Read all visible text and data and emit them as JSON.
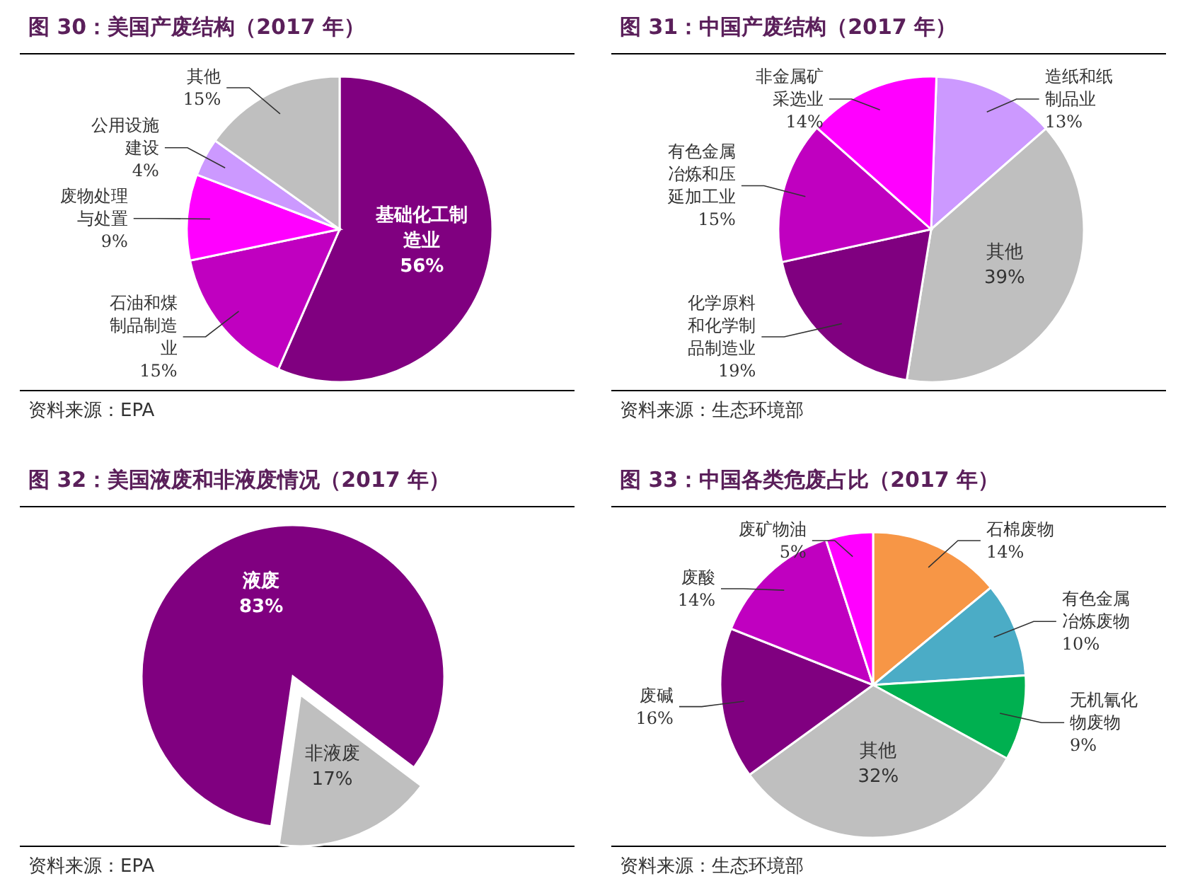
{
  "chart_data": [
    {
      "type": "pie",
      "title": "图 30：美国产废结构（2017 年）",
      "categories": [
        "基础化工制造业",
        "石油和煤制品制造业",
        "废物处理与处置",
        "公用设施建设",
        "其他"
      ],
      "values": [
        56,
        15,
        9,
        4,
        15
      ],
      "value_labels": [
        "56%",
        "15%",
        "9%",
        "4%",
        "15%"
      ],
      "colors": [
        "#800080",
        "#c000c0",
        "#ff00ff",
        "#cc99ff",
        "#bfbfbf"
      ],
      "annotations": [
        "资料来源：EPA"
      ]
    },
    {
      "type": "pie",
      "title": "图 31：中国产废结构（2017 年）",
      "categories": [
        "造纸和纸制品业",
        "其他",
        "化学原料和化学制品制造业",
        "有色金属冶炼和压延加工业",
        "非金属矿采选业"
      ],
      "values": [
        13,
        39,
        19,
        15,
        14
      ],
      "value_labels": [
        "13%",
        "39%",
        "19%",
        "15%",
        "14%"
      ],
      "colors": [
        "#cc99ff",
        "#bfbfbf",
        "#800080",
        "#c000c0",
        "#ff00ff"
      ],
      "annotations": [
        "资料来源：生态环境部"
      ]
    },
    {
      "type": "pie",
      "title": "图 32：美国液废和非液废情况（2017 年）",
      "categories": [
        "非液废",
        "液废"
      ],
      "values": [
        17,
        83
      ],
      "value_labels": [
        "17%",
        "83%"
      ],
      "colors": [
        "#bfbfbf",
        "#800080"
      ],
      "annotations": [
        "资料来源：EPA"
      ]
    },
    {
      "type": "pie",
      "title": "图 33：中国各类危废占比（2017 年）",
      "categories": [
        "石棉废物",
        "有色金属冶炼废物",
        "无机氰化物废物",
        "其他",
        "废碱",
        "废酸",
        "废矿物油"
      ],
      "values": [
        14,
        10,
        9,
        32,
        16,
        14,
        5
      ],
      "value_labels": [
        "14%",
        "10%",
        "9%",
        "32%",
        "16%",
        "14%",
        "5%"
      ],
      "colors": [
        "#f79646",
        "#4bacc6",
        "#00b050",
        "#bfbfbf",
        "#800080",
        "#c000c0",
        "#ff00ff"
      ],
      "annotations": [
        "资料来源：生态环境部"
      ]
    }
  ]
}
